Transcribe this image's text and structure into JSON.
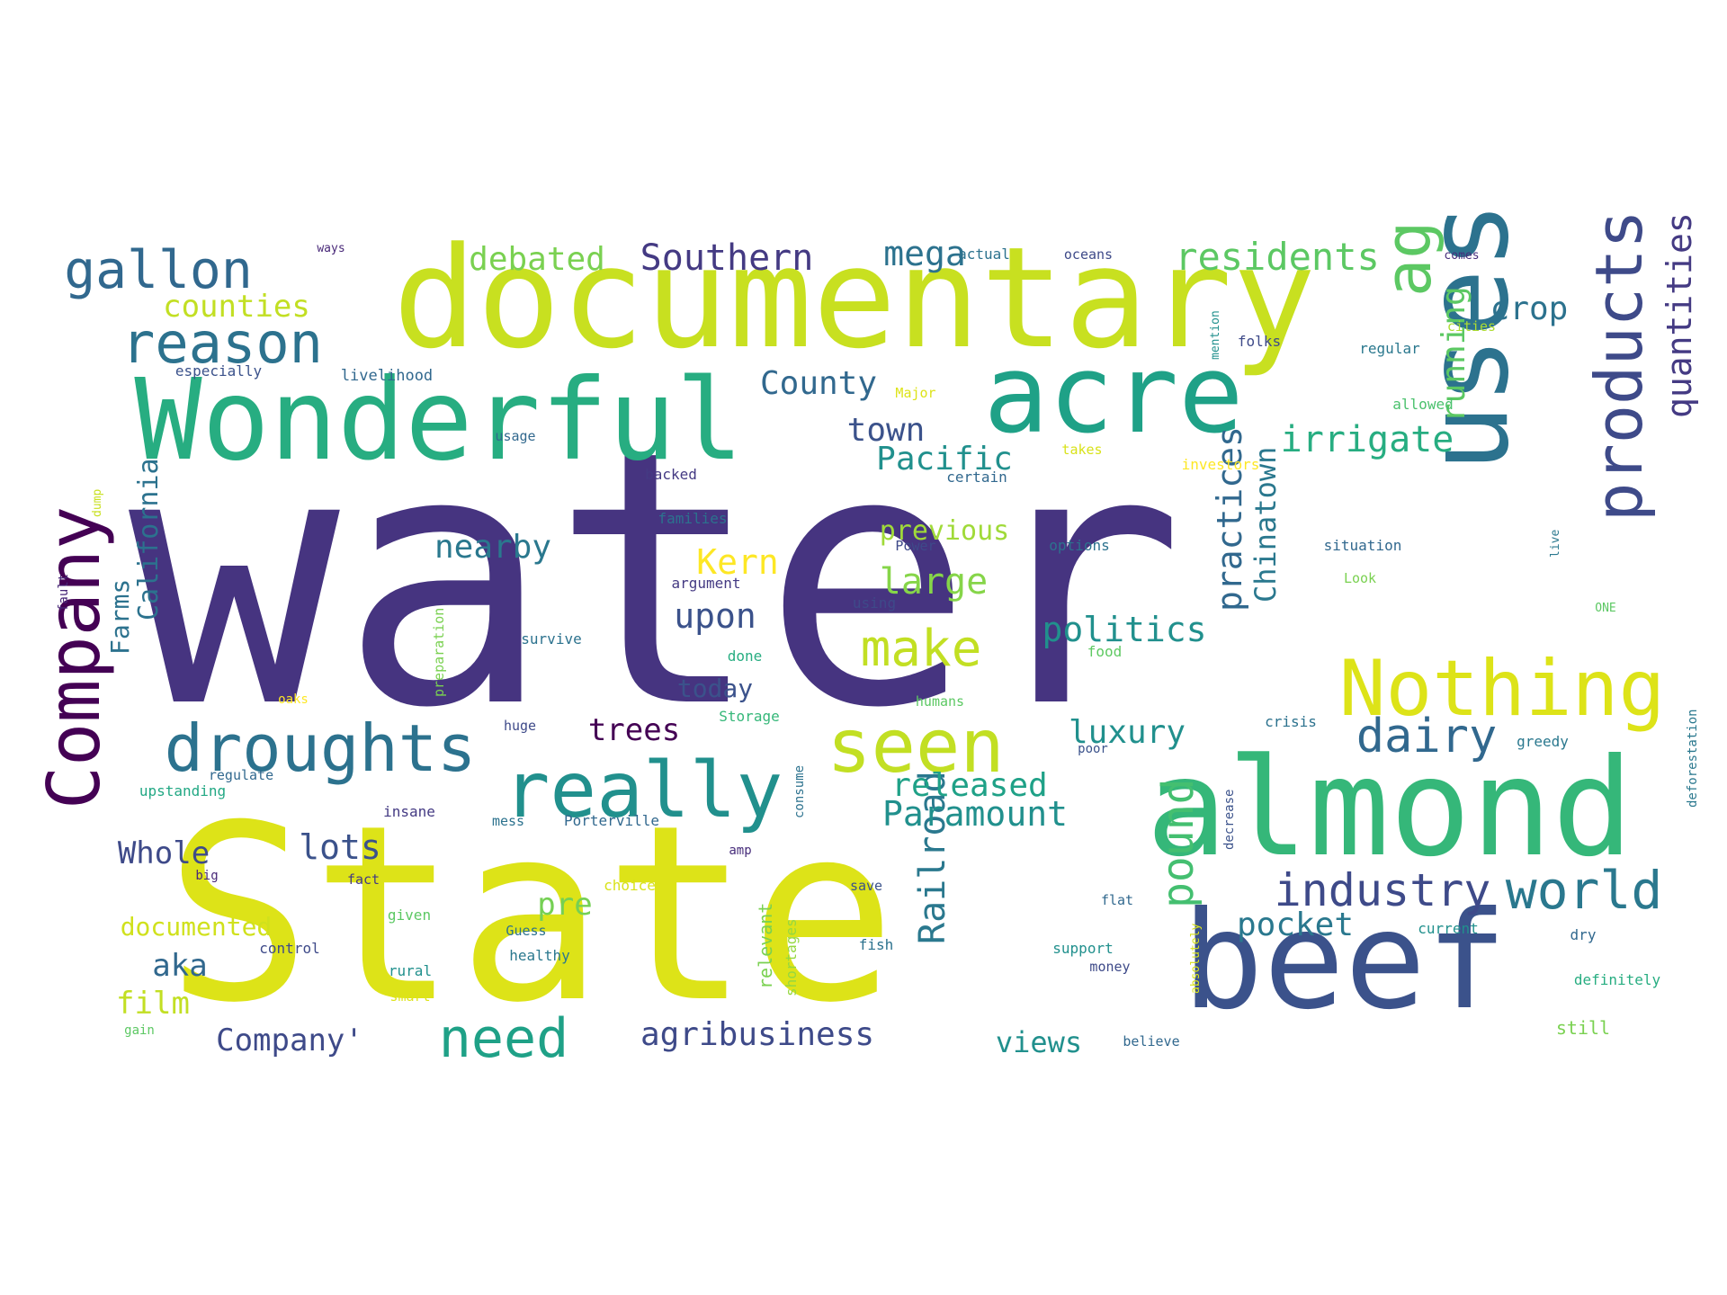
{
  "palette": {
    "dark_indigo": "#463480",
    "indigo": "#3b528b",
    "slate_blue": "#3e4a89",
    "teal_blue": "#2c728e",
    "teal": "#21908d",
    "green_teal": "#27ad81",
    "green": "#5cc863",
    "yellow_green": "#aadc32",
    "yellow": "#dde318",
    "purple": "#440154"
  },
  "words": [
    {
      "text": "water",
      "color": "#463480"
    },
    {
      "text": "State",
      "color": "#dde318"
    },
    {
      "text": "documentary",
      "color": "#c8e020"
    },
    {
      "text": "Wonderful",
      "color": "#27ad81"
    },
    {
      "text": "almond",
      "color": "#35b779"
    },
    {
      "text": "beef",
      "color": "#3b528b"
    },
    {
      "text": "uses",
      "color": "#2c728e"
    },
    {
      "text": "acre",
      "color": "#1fa187"
    },
    {
      "text": "Nothing",
      "color": "#dde318"
    },
    {
      "text": "Company",
      "color": "#440154"
    },
    {
      "text": "really",
      "color": "#21908d"
    },
    {
      "text": "seen",
      "color": "#c2df23"
    },
    {
      "text": "droughts",
      "color": "#2c728e"
    },
    {
      "text": "products",
      "color": "#3e4a89"
    },
    {
      "text": "ag",
      "color": "#5cc863"
    },
    {
      "text": "reason",
      "color": "#2c728e"
    },
    {
      "text": "gallon",
      "color": "#31688e"
    },
    {
      "text": "industry",
      "color": "#3e4a89"
    },
    {
      "text": "world",
      "color": "#2a788e"
    },
    {
      "text": "dairy",
      "color": "#31688e"
    },
    {
      "text": "need",
      "color": "#1fa187"
    },
    {
      "text": "make",
      "color": "#c2df23"
    },
    {
      "text": "pound",
      "color": "#44bf70"
    },
    {
      "text": "quantities",
      "color": "#443a83"
    },
    {
      "text": "practices",
      "color": "#31688e"
    },
    {
      "text": "Chinatown",
      "color": "#2a788e"
    },
    {
      "text": "Railroad",
      "color": "#2a788e"
    },
    {
      "text": "running",
      "color": "#5cc863"
    },
    {
      "text": "residents",
      "color": "#5cc863"
    },
    {
      "text": "Southern",
      "color": "#443a83"
    },
    {
      "text": "debated",
      "color": "#7ad151"
    },
    {
      "text": "mega",
      "color": "#2c728e"
    },
    {
      "text": "counties",
      "color": "#c2df23"
    },
    {
      "text": "crop",
      "color": "#2c728e"
    },
    {
      "text": "County",
      "color": "#31688e"
    },
    {
      "text": "town",
      "color": "#3b528b"
    },
    {
      "text": "Pacific",
      "color": "#21908d"
    },
    {
      "text": "irrigate",
      "color": "#27ad81"
    },
    {
      "text": "previous",
      "color": "#a0da39"
    },
    {
      "text": "Kern",
      "color": "#fde725"
    },
    {
      "text": "nearby",
      "color": "#2a788e"
    },
    {
      "text": "large",
      "color": "#86d549"
    },
    {
      "text": "upon",
      "color": "#3b528b"
    },
    {
      "text": "politics",
      "color": "#21908d"
    },
    {
      "text": "California",
      "color": "#2c728e"
    },
    {
      "text": "Farms",
      "color": "#2c728e"
    },
    {
      "text": "today",
      "color": "#3b528b"
    },
    {
      "text": "trees",
      "color": "#440154"
    },
    {
      "text": "luxury",
      "color": "#21908d"
    },
    {
      "text": "released",
      "color": "#1fa187"
    },
    {
      "text": "Paramount",
      "color": "#21908d"
    },
    {
      "text": "Whole",
      "color": "#3e4a89"
    },
    {
      "text": "lots",
      "color": "#3b528b"
    },
    {
      "text": "pre",
      "color": "#75d054"
    },
    {
      "text": "pocket",
      "color": "#2a788e"
    },
    {
      "text": "documented",
      "color": "#d0e11c"
    },
    {
      "text": "aka",
      "color": "#31688e"
    },
    {
      "text": "film",
      "color": "#c2df23"
    },
    {
      "text": "Company'",
      "color": "#3e4a89"
    },
    {
      "text": "agribusiness",
      "color": "#3e4a89"
    },
    {
      "text": "views",
      "color": "#21908d"
    },
    {
      "text": "relevant",
      "color": "#7ad151"
    },
    {
      "text": "shortages",
      "color": "#95d840"
    },
    {
      "text": "ways",
      "color": "#482878"
    },
    {
      "text": "actual",
      "color": "#2c728e"
    },
    {
      "text": "oceans",
      "color": "#3e4a89"
    },
    {
      "text": "comes",
      "color": "#472d7b"
    },
    {
      "text": "cities",
      "color": "#addc30"
    },
    {
      "text": "mention",
      "color": "#21908d"
    },
    {
      "text": "folks",
      "color": "#3e4a89"
    },
    {
      "text": "regular",
      "color": "#2a788e"
    },
    {
      "text": "especially",
      "color": "#3b528b"
    },
    {
      "text": "livelihood",
      "color": "#31688e"
    },
    {
      "text": "Major",
      "color": "#dde318"
    },
    {
      "text": "allowed",
      "color": "#4ac16d"
    },
    {
      "text": "usage",
      "color": "#31688e"
    },
    {
      "text": "takes",
      "color": "#d8e219"
    },
    {
      "text": "investors",
      "color": "#fde725"
    },
    {
      "text": "backed",
      "color": "#443a83"
    },
    {
      "text": "certain",
      "color": "#31688e"
    },
    {
      "text": "dump",
      "color": "#c8e020"
    },
    {
      "text": "families",
      "color": "#2c728e"
    },
    {
      "text": "Power",
      "color": "#3e4a89"
    },
    {
      "text": "options",
      "color": "#2c728e"
    },
    {
      "text": "situation",
      "color": "#31688e"
    },
    {
      "text": "live",
      "color": "#2a788e"
    },
    {
      "text": "fault",
      "color": "#482878"
    },
    {
      "text": "preparation",
      "color": "#7ad151"
    },
    {
      "text": "argument",
      "color": "#443a83"
    },
    {
      "text": "using",
      "color": "#3e4a89"
    },
    {
      "text": "Look",
      "color": "#7ad151"
    },
    {
      "text": "ONE",
      "color": "#5cc863"
    },
    {
      "text": "survive",
      "color": "#2c728e"
    },
    {
      "text": "done",
      "color": "#27ad81"
    },
    {
      "text": "food",
      "color": "#5ec962"
    },
    {
      "text": "deforestation",
      "color": "#2a788e"
    },
    {
      "text": "oaks",
      "color": "#fde725"
    },
    {
      "text": "Storage",
      "color": "#35b779"
    },
    {
      "text": "humans",
      "color": "#5cc863"
    },
    {
      "text": "huge",
      "color": "#3e4a89"
    },
    {
      "text": "crisis",
      "color": "#2c728e"
    },
    {
      "text": "greedy",
      "color": "#2a788e"
    },
    {
      "text": "regulate",
      "color": "#31688e"
    },
    {
      "text": "consume",
      "color": "#2c728e"
    },
    {
      "text": "poor",
      "color": "#3b528b"
    },
    {
      "text": "upstanding",
      "color": "#22a884"
    },
    {
      "text": "insane",
      "color": "#443a83"
    },
    {
      "text": "mess",
      "color": "#2c728e"
    },
    {
      "text": "Porterville",
      "color": "#31688e"
    },
    {
      "text": "decrease",
      "color": "#3b528b"
    },
    {
      "text": "amp",
      "color": "#472d7b"
    },
    {
      "text": "big",
      "color": "#482878"
    },
    {
      "text": "fact",
      "color": "#443a83"
    },
    {
      "text": "choice",
      "color": "#d8e219"
    },
    {
      "text": "save",
      "color": "#3b528b"
    },
    {
      "text": "flat",
      "color": "#31688e"
    },
    {
      "text": "absolutely",
      "color": "#d8e219"
    },
    {
      "text": "given",
      "color": "#5cc863"
    },
    {
      "text": "Guess",
      "color": "#2c728e"
    },
    {
      "text": "current",
      "color": "#21908d"
    },
    {
      "text": "dry",
      "color": "#31688e"
    },
    {
      "text": "control",
      "color": "#3e4a89"
    },
    {
      "text": "healthy",
      "color": "#2a788e"
    },
    {
      "text": "fish",
      "color": "#2c728e"
    },
    {
      "text": "support",
      "color": "#21908d"
    },
    {
      "text": "money",
      "color": "#3e4a89"
    },
    {
      "text": "rural",
      "color": "#21908d"
    },
    {
      "text": "definitely",
      "color": "#27ad81"
    },
    {
      "text": "smart",
      "color": "#dde318"
    },
    {
      "text": "gain",
      "color": "#5cc863"
    },
    {
      "text": "believe",
      "color": "#31688e"
    },
    {
      "text": "still",
      "color": "#7ad151"
    }
  ]
}
